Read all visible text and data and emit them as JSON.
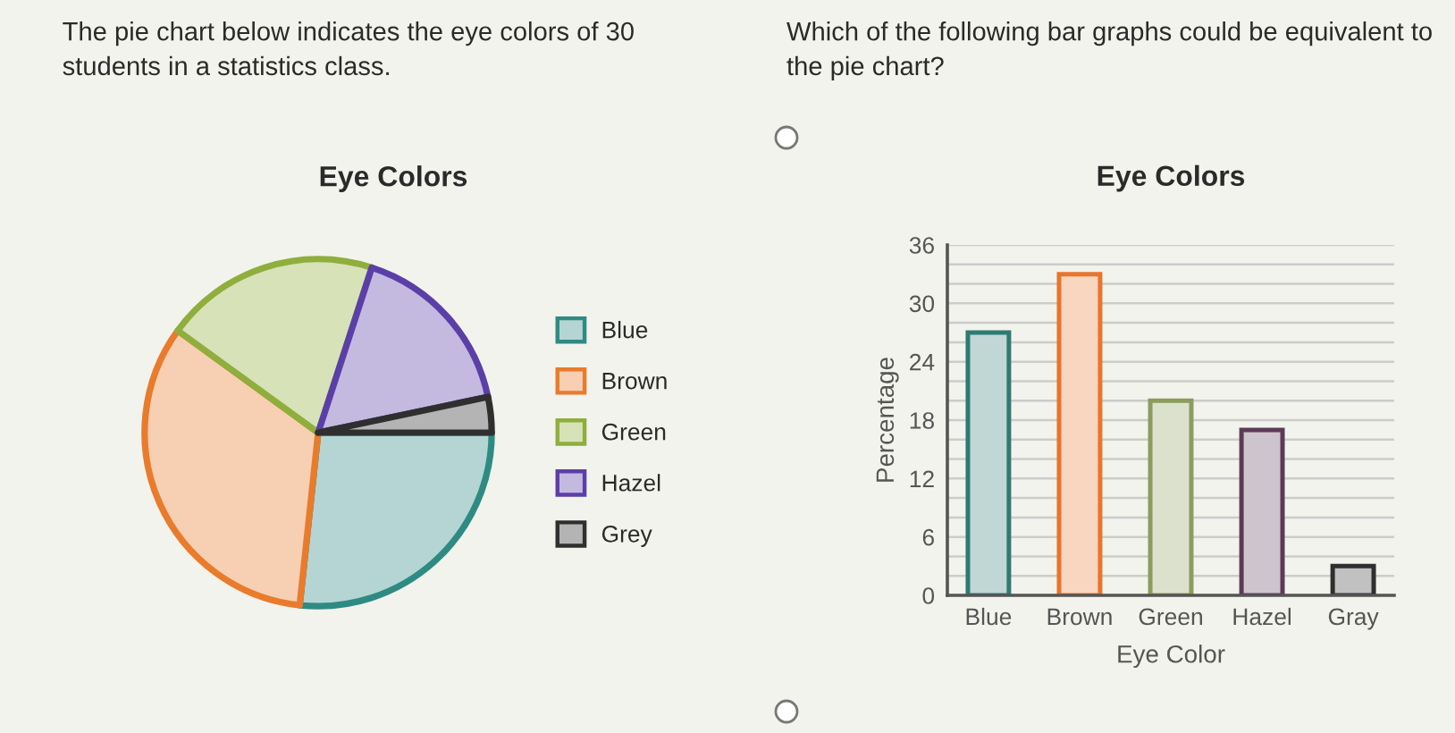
{
  "chart_data": [
    {
      "type": "pie",
      "title": "Eye Colors",
      "categories": [
        "Blue",
        "Brown",
        "Green",
        "Hazel",
        "Grey"
      ],
      "values": [
        26.7,
        33.3,
        20,
        16.7,
        3.3
      ],
      "colors": [
        "#2e8b84",
        "#e97b2c",
        "#8fae3c",
        "#5b3fa8",
        "#2f2f2f"
      ],
      "legend": "right",
      "annotations": [
        "The pie chart below indicates the eye colors of 30 students in a statistics class."
      ]
    },
    {
      "type": "bar",
      "title": "Eye Colors",
      "xlabel": "Eye Color",
      "ylabel": "Percentage",
      "categories": [
        "Blue",
        "Brown",
        "Green",
        "Hazel",
        "Gray"
      ],
      "values": [
        27,
        33,
        20,
        17,
        3
      ],
      "colors": [
        "#2f7a72",
        "#e8752c",
        "#8c9c5c",
        "#5c3b57",
        "#2f2f2f"
      ],
      "ylim": [
        0,
        36
      ],
      "yticks": [
        0,
        {
          "value": 2,
          "label": null
        },
        {
          "value": 4,
          "label": null
        },
        6,
        {
          "value": 8,
          "label": null
        },
        {
          "value": 10,
          "label": null
        },
        12,
        {
          "value": 14,
          "label": null
        },
        {
          "value": 16,
          "label": null
        },
        18,
        {
          "value": 20,
          "label": null
        },
        {
          "value": 22,
          "label": null
        },
        24,
        {
          "value": 26,
          "label": null
        },
        {
          "value": 28,
          "label": null
        },
        30,
        {
          "value": 32,
          "label": null
        },
        {
          "value": 34,
          "label": null
        },
        36
      ],
      "grid": "y",
      "annotations": [
        "Which of the following bar graphs could be equivalent to the pie chart?"
      ]
    }
  ]
}
